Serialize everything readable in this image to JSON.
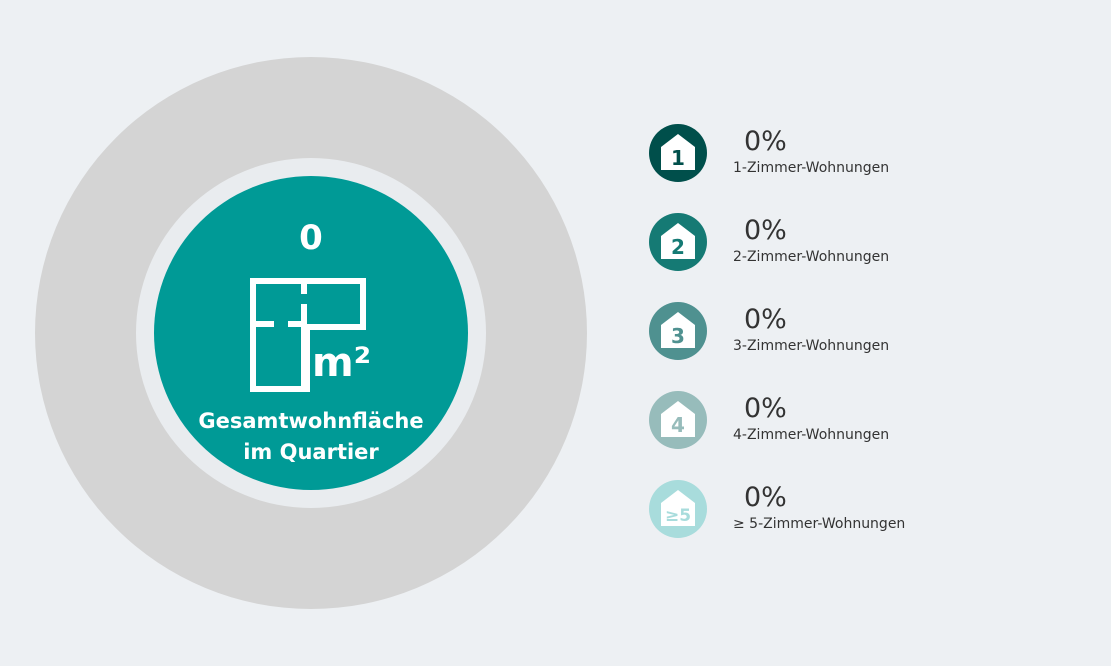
{
  "summary": {
    "value": "0",
    "caption_line1": "Gesamtwohnfläche",
    "caption_line2": "im Quartier",
    "unit": "m²",
    "icon": "floor-plan-icon"
  },
  "colors": {
    "background": "#edf0f3",
    "outer_ring": "#d4d4d4",
    "core": "#009a96"
  },
  "legend": [
    {
      "badge": "1",
      "percent": "0%",
      "label": "1-Zimmer-Wohnungen",
      "color": "#004f4b"
    },
    {
      "badge": "2",
      "percent": "0%",
      "label": "2-Zimmer-Wohnungen",
      "color": "#157a74"
    },
    {
      "badge": "3",
      "percent": "0%",
      "label": "3-Zimmer-Wohnungen",
      "color": "#4f9190"
    },
    {
      "badge": "4",
      "percent": "0%",
      "label": "4-Zimmer-Wohnungen",
      "color": "#97bcbb"
    },
    {
      "badge": "≥5",
      "percent": "0%",
      "label": "≥ 5-Zimmer-Wohnungen",
      "color": "#a8dcdc"
    }
  ]
}
